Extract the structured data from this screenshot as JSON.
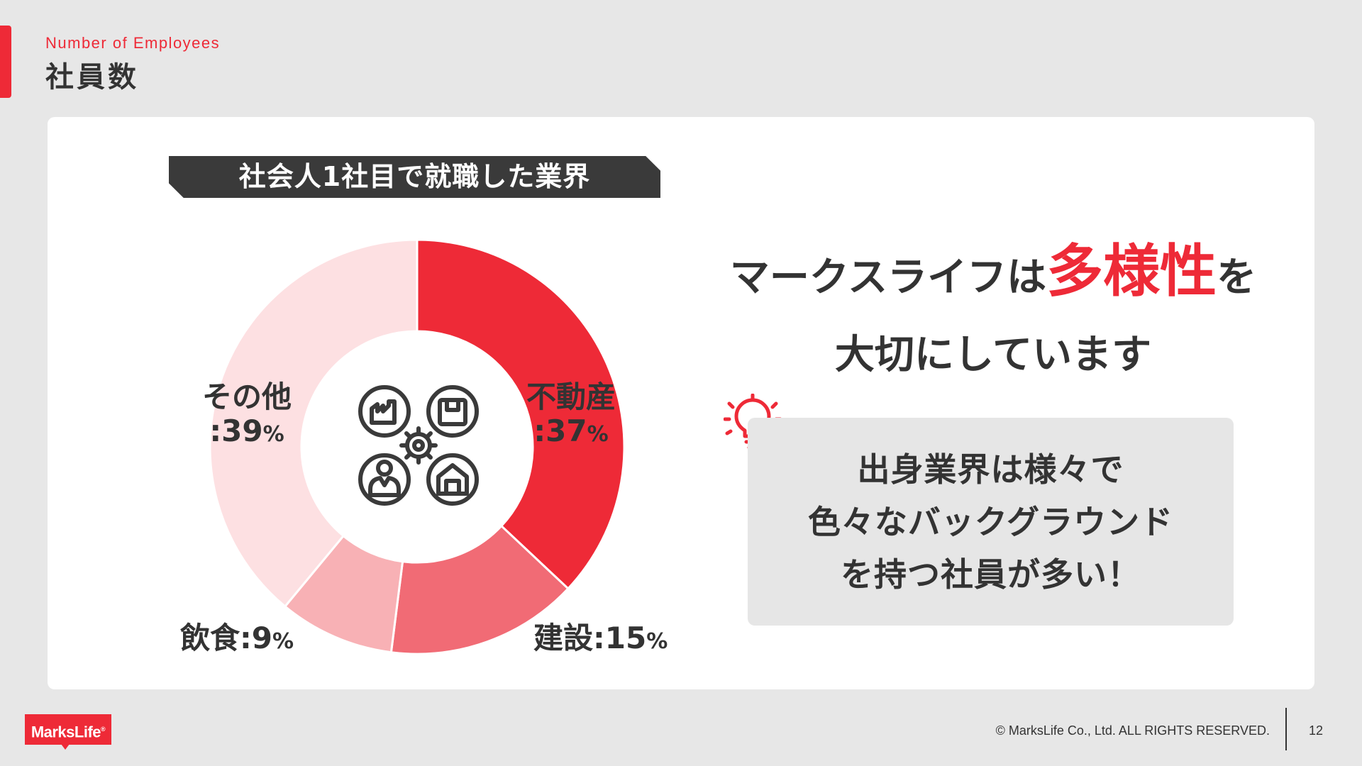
{
  "header": {
    "subtitle": "Number of Employees",
    "title": "社員数"
  },
  "chart_data": {
    "type": "pie",
    "title": "社会人1社目で就職した業界",
    "categories": [
      "不動産",
      "建設",
      "飲食",
      "その他"
    ],
    "values": [
      37,
      15,
      9,
      39
    ],
    "value_suffix": "%",
    "legend": "none",
    "donut": true,
    "colors": [
      "#ee2a37",
      "#f16b75",
      "#f8b1b5",
      "#fde0e2"
    ]
  },
  "labels": {
    "real_estate": {
      "name": "不動産",
      "value": ":37",
      "unit": "%"
    },
    "construction": {
      "name": "建設",
      "value": ":15",
      "unit": "%"
    },
    "food": {
      "name": "飲食",
      "value": ":9",
      "unit": "%"
    },
    "other": {
      "name": "その他",
      "value": ":39",
      "unit": "%"
    }
  },
  "headline": {
    "prefix": "マークスライフは",
    "highlight": "多様性",
    "suffix": "を",
    "line2": "大切にしています"
  },
  "message": {
    "line1": "出身業界は様々で",
    "line2": "色々なバックグラウンド",
    "line3": "を持つ社員が多い！"
  },
  "icons": {
    "center": "industries-gear-icon",
    "bulb": "lightbulb-icon"
  },
  "footer": {
    "logo": "MarksLife",
    "logo_mark": "®",
    "copyright": "© MarksLife Co., Ltd. ALL RIGHTS RESERVED.",
    "page": "12"
  }
}
